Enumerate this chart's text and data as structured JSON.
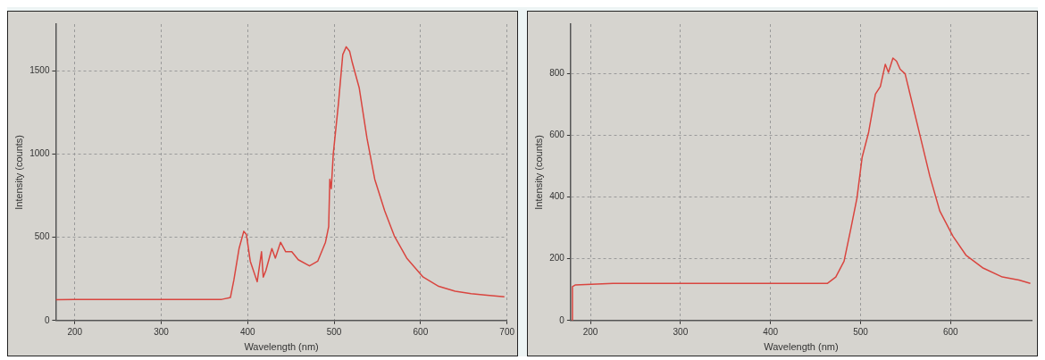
{
  "chart_data": [
    {
      "type": "line",
      "xlabel": "Wavelength (nm)",
      "ylabel": "Intensity (counts)",
      "series": [
        {
          "color": "#d9453f",
          "x": [
            178,
            200,
            250,
            300,
            350,
            370,
            380,
            384,
            390,
            395.5,
            398.5,
            403,
            411,
            416,
            418,
            421,
            428,
            432,
            438,
            444,
            451,
            458.5,
            471.5,
            481,
            490,
            493.7,
            495,
            496.7,
            499,
            505,
            510,
            514,
            518,
            521,
            529,
            538,
            547,
            558.5,
            569.6,
            584,
            603,
            621,
            640,
            658.5,
            677,
            697
          ],
          "values": [
            125,
            126,
            127,
            127,
            127,
            127,
            138,
            242,
            432,
            536,
            517,
            356,
            233,
            413,
            261,
            299,
            432,
            375,
            470,
            413,
            413,
            365,
            328,
            356,
            470,
            564,
            848,
            792,
            1000,
            1303,
            1597,
            1644,
            1616,
            1549,
            1398,
            1095,
            848,
            659,
            508,
            375,
            261,
            205,
            176,
            161,
            152,
            142
          ]
        }
      ],
      "xlim": [
        178,
        700
      ],
      "xticks": [
        200,
        300,
        400,
        500,
        600,
        700
      ],
      "ylim": [
        0,
        1780
      ],
      "yticks": [
        0,
        500,
        1000,
        1500
      ],
      "grid": true,
      "legend": false,
      "line_style": "solid",
      "marker": "none"
    },
    {
      "type": "line",
      "xlabel": "Wavelength (nm)",
      "ylabel": "Intensity (counts)",
      "series": [
        {
          "color": "#d9453f",
          "x": [
            179.5,
            180,
            183,
            225,
            298.5,
            372,
            463,
            472.5,
            481.7,
            489,
            496,
            501.8,
            509,
            516.5,
            522,
            527.5,
            531,
            536,
            540,
            544,
            549.5,
            555,
            566,
            577,
            588,
            602.6,
            617,
            635.5,
            657.5,
            676,
            688.6
          ],
          "values": [
            0,
            110,
            115,
            120,
            120,
            120,
            120,
            141,
            192,
            294,
            396,
            529,
            610,
            733,
            758,
            830,
            804,
            850,
            840,
            814,
            799,
            733,
            600,
            467,
            355,
            273,
            212,
            171,
            141,
            131,
            120
          ]
        }
      ],
      "xlim": [
        178,
        690
      ],
      "xticks": [
        200,
        300,
        400,
        500,
        600
      ],
      "ylim": [
        0,
        960
      ],
      "yticks": [
        0,
        200,
        400,
        600,
        800
      ],
      "grid": true,
      "legend": false,
      "line_style": "solid",
      "marker": "none"
    }
  ]
}
